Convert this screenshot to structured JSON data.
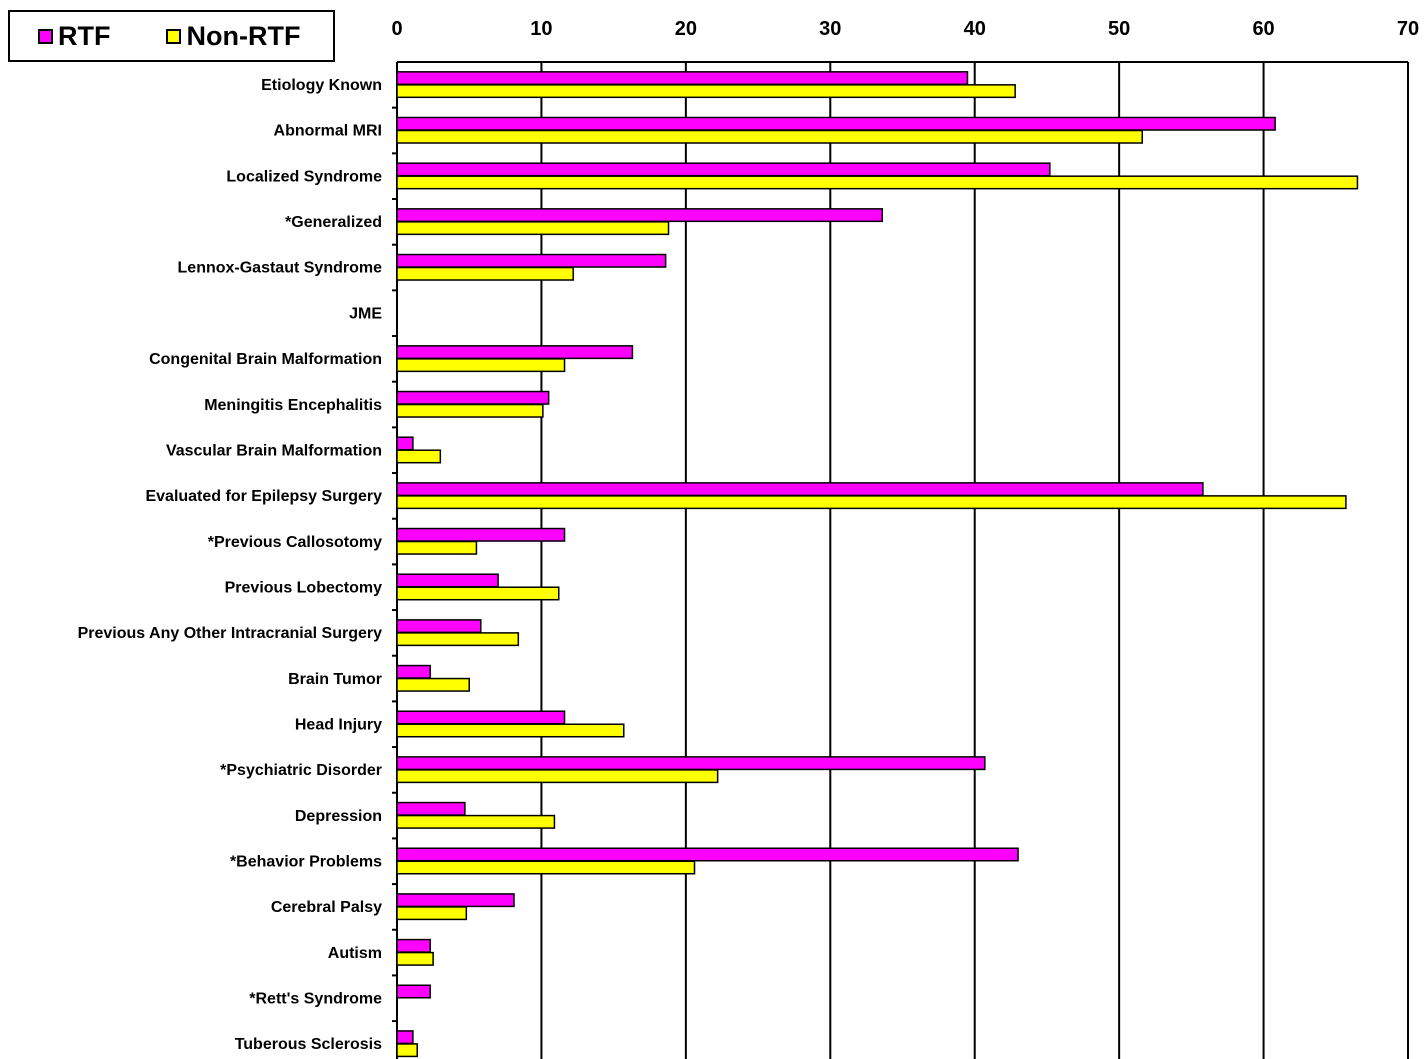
{
  "colors": {
    "rtf": "#ff00ff",
    "non_rtf": "#ffff00"
  },
  "legend": {
    "position": "top-left",
    "rtf_label": "RTF",
    "non_rtf_label": "Non-RTF"
  },
  "chart_data": {
    "type": "bar",
    "orientation": "horizontal",
    "title": "",
    "xlabel": "",
    "ylabel": "",
    "xlim": [
      0,
      70
    ],
    "x_ticks": [
      "0",
      "10",
      "20",
      "30",
      "40",
      "50",
      "60",
      "70"
    ],
    "x_axis_position": "top",
    "grid": true,
    "categories": [
      "Etiology Known",
      "Abnormal MRI",
      "Localized Syndrome",
      "*Generalized",
      "Lennox-Gastaut Syndrome",
      "JME",
      "Congenital Brain Malformation",
      "Meningitis Encephalitis",
      "Vascular Brain Malformation",
      "Evaluated for Epilepsy Surgery",
      "*Previous Callosotomy",
      "Previous Lobectomy",
      "Previous Any Other Intracranial Surgery",
      "Brain Tumor",
      "Head Injury",
      "*Psychiatric Disorder",
      "Depression",
      "*Behavior Problems",
      "Cerebral Palsy",
      "Autism",
      "*Rett's Syndrome",
      "Tuberous Sclerosis"
    ],
    "series": [
      {
        "name": "RTF",
        "values": [
          39.5,
          60.8,
          45.2,
          33.6,
          18.6,
          0,
          16.3,
          10.5,
          1.1,
          55.8,
          11.6,
          7.0,
          5.8,
          2.3,
          11.6,
          40.7,
          4.7,
          43.0,
          8.1,
          2.3,
          2.3,
          1.1
        ]
      },
      {
        "name": "Non-RTF",
        "values": [
          42.8,
          51.6,
          66.5,
          18.8,
          12.2,
          0,
          11.6,
          10.1,
          3.0,
          65.7,
          5.5,
          11.2,
          8.4,
          5.0,
          15.7,
          22.2,
          10.9,
          20.6,
          4.8,
          2.5,
          0,
          1.4
        ]
      }
    ]
  }
}
